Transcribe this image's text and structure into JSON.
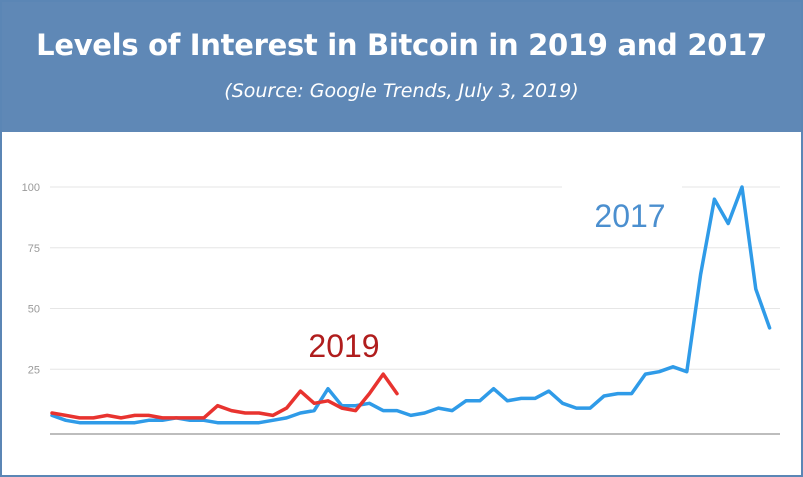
{
  "header": {
    "title": "Levels of Interest in Bitcoin in 2019 and 2017",
    "subtitle": "(Source: Google Trends, July 3, 2019)"
  },
  "colors": {
    "header_bg": "#5f88b6",
    "series_2017": "#2f9be8",
    "series_2019": "#e8332f",
    "label_2017": "#4b8fcf",
    "label_2019": "#b01d1d",
    "grid": "#e6e6e6",
    "axis": "#bdbdbd"
  },
  "chart_data": {
    "type": "line",
    "ylim": [
      0,
      100
    ],
    "yticks": [
      "25",
      "50",
      "75",
      "100"
    ],
    "grid": true,
    "series": [
      {
        "name": "2017",
        "values": [
          6,
          4,
          3,
          3,
          3,
          3,
          3,
          4,
          4,
          5,
          4,
          4,
          3,
          3,
          3,
          3,
          4,
          5,
          7,
          8,
          17,
          10,
          10,
          11,
          8,
          8,
          6,
          7,
          9,
          8,
          12,
          12,
          17,
          12,
          13,
          13,
          16,
          11,
          9,
          9,
          14,
          15,
          15,
          23,
          24,
          26,
          24,
          64,
          95,
          85,
          100,
          58,
          42
        ]
      },
      {
        "name": "2019",
        "values": [
          7,
          6,
          5,
          5,
          6,
          5,
          6,
          6,
          5,
          5,
          5,
          5,
          10,
          8,
          7,
          7,
          6,
          9,
          16,
          11,
          12,
          9,
          8,
          15,
          23,
          15
        ]
      }
    ]
  }
}
